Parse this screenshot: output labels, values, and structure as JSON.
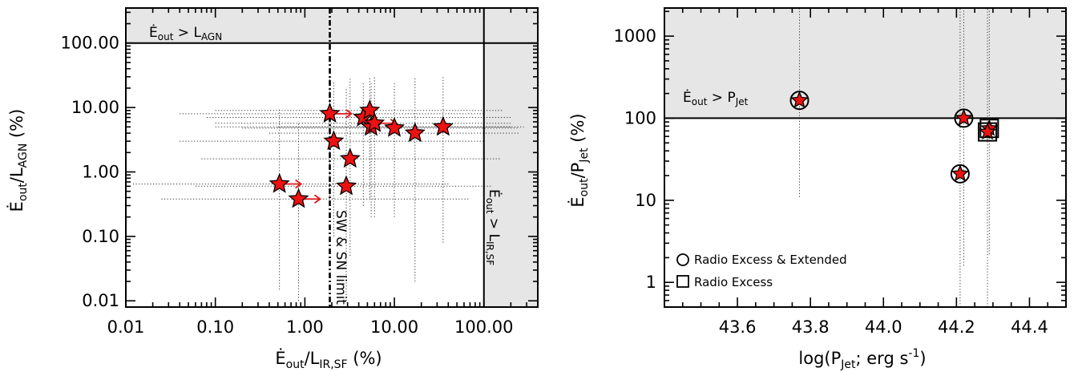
{
  "chart_data": [
    {
      "type": "scatter",
      "panel": "left",
      "xlabel": "Ė_out/L_IR,SF (%)",
      "ylabel": "Ė_out/L_AGN (%)",
      "xscale": "log",
      "yscale": "log",
      "xlim": [
        0.01,
        400
      ],
      "ylim": [
        0.008,
        350
      ],
      "xticks": [
        "0.01",
        "0.10",
        "1.00",
        "10.00",
        "100.00"
      ],
      "yticks": [
        "0.01",
        "0.10",
        "1.00",
        "10.00",
        "100.00"
      ],
      "annotations": {
        "top_region": "Ė_out > L_AGN",
        "right_region": "Ė_out > L_IR,SF",
        "limit_line": "SW & SN limit"
      },
      "limit_x": 1.9,
      "points": [
        {
          "x": 1.9,
          "y": 8.0,
          "xerr": [
            0.04,
            100
          ],
          "yerr": [
            0.35,
            30
          ],
          "lower_limit_x": true
        },
        {
          "x": 4.5,
          "y": 7.0,
          "xerr": [
            0.08,
            200
          ],
          "yerr": [
            0.3,
            25
          ],
          "lower_limit_x": false
        },
        {
          "x": 5.3,
          "y": 9.0,
          "xerr": [
            0.1,
            160
          ],
          "yerr": [
            0.4,
            30
          ],
          "lower_limit_x": false
        },
        {
          "x": 5.5,
          "y": 5.0,
          "xerr": [
            0.1,
            200
          ],
          "yerr": [
            0.2,
            25
          ],
          "lower_limit_x": false
        },
        {
          "x": 6.0,
          "y": 5.7,
          "xerr": [
            0.1,
            200
          ],
          "yerr": [
            0.2,
            30
          ],
          "lower_limit_x": true
        },
        {
          "x": 10.0,
          "y": 4.8,
          "xerr": [
            0.2,
            250
          ],
          "yerr": [
            0.2,
            25
          ],
          "lower_limit_x": false
        },
        {
          "x": 17.0,
          "y": 4.0,
          "xerr": [
            0.4,
            250
          ],
          "yerr": [
            0.02,
            30
          ],
          "lower_limit_x": false
        },
        {
          "x": 35.0,
          "y": 5.0,
          "xerr": [
            0.5,
            280
          ],
          "yerr": [
            0.08,
            30
          ],
          "lower_limit_x": false
        },
        {
          "x": 2.1,
          "y": 3.0,
          "xerr": [
            0.04,
            100
          ],
          "yerr": [
            0.1,
            25
          ],
          "lower_limit_x": false
        },
        {
          "x": 3.2,
          "y": 1.6,
          "xerr": [
            0.07,
            150
          ],
          "yerr": [
            0.05,
            30
          ],
          "lower_limit_x": false
        },
        {
          "x": 0.52,
          "y": 0.65,
          "xerr": [
            0.012,
            40
          ],
          "yerr": [
            0.015,
            10
          ],
          "lower_limit_x": true
        },
        {
          "x": 2.9,
          "y": 0.6,
          "xerr": [
            0.06,
            120
          ],
          "yerr": [
            0.01,
            20
          ],
          "lower_limit_x": false
        },
        {
          "x": 0.85,
          "y": 0.38,
          "xerr": [
            0.025,
            70
          ],
          "yerr": [
            0.01,
            6
          ],
          "lower_limit_x": true
        }
      ]
    },
    {
      "type": "scatter",
      "panel": "right",
      "xlabel": "log(P_Jet; erg s⁻¹)",
      "ylabel": "Ė_out/P_Jet (%)",
      "xscale": "linear",
      "yscale": "log",
      "xlim": [
        43.4,
        44.5
      ],
      "ylim": [
        0.5,
        2200
      ],
      "xticks": [
        "43.6",
        "43.8",
        "44.0",
        "44.2",
        "44.4"
      ],
      "yticks": [
        "1",
        "10",
        "100",
        "1000"
      ],
      "annotations": {
        "top_region": "Ė_out > P_Jet"
      },
      "legend": [
        {
          "symbol": "circle",
          "label": "Radio Excess & Extended"
        },
        {
          "symbol": "square",
          "label": "Radio Excess"
        }
      ],
      "points": [
        {
          "x": 43.77,
          "y": 165,
          "marker": "circle",
          "yerr": [
            11,
            2200
          ]
        },
        {
          "x": 44.22,
          "y": 100,
          "marker": "circle",
          "yerr": [
            1.6,
            2200
          ]
        },
        {
          "x": 44.21,
          "y": 21,
          "marker": "circle",
          "yerr": [
            0.5,
            2200
          ]
        },
        {
          "x": 44.29,
          "y": 75,
          "marker": "square",
          "yerr": [
            2.2,
            2200
          ]
        },
        {
          "x": 44.285,
          "y": 68,
          "marker": "square",
          "yerr": [
            0.5,
            2200
          ]
        }
      ]
    }
  ],
  "labels": {
    "left": {
      "xlabel_main": "Ė",
      "xlabel_sub1": "out",
      "xlabel_mid": "/L",
      "xlabel_sub2": "IR,SF",
      "xlabel_end": " (%)",
      "ylabel_main": "Ė",
      "ylabel_sub1": "out",
      "ylabel_mid": "/L",
      "ylabel_sub2": "AGN",
      "ylabel_end": " (%)",
      "top_main": "Ė",
      "top_sub1": "out",
      "top_mid": " > L",
      "top_sub2": "AGN",
      "right_main": "Ė",
      "right_sub1": "out",
      "right_mid": " > L",
      "right_sub2": "IR,SF",
      "limit": "SW & SN limit"
    },
    "right": {
      "xlabel_main": "log(P",
      "xlabel_sub": "Jet",
      "xlabel_end": "; erg s",
      "xlabel_sup": "-1",
      "xlabel_close": ")",
      "ylabel_main": "Ė",
      "ylabel_sub1": "out",
      "ylabel_mid": "/P",
      "ylabel_sub2": "Jet",
      "ylabel_end": " (%)",
      "top_main": "Ė",
      "top_sub1": "out",
      "top_mid": " > P",
      "top_sub2": "Jet",
      "legend_circle": "Radio Excess & Extended",
      "legend_square": "Radio Excess"
    }
  }
}
